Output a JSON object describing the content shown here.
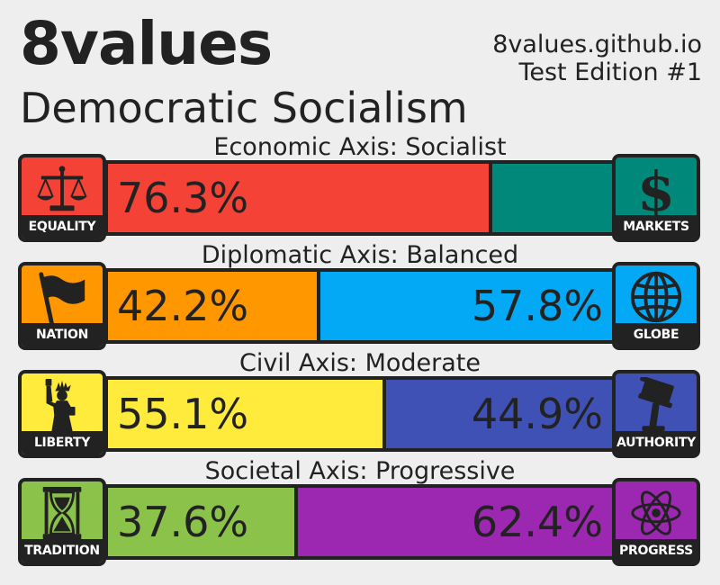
{
  "header": {
    "brand": "8values",
    "ideology": "Democratic Socialism",
    "site": "8values.github.io",
    "edition": "Test Edition #1"
  },
  "axes": [
    {
      "label": "Economic Axis: Socialist",
      "left": {
        "name": "EQUALITY",
        "icon": "scales-icon",
        "value": 76.3,
        "text": "76.3%",
        "color": "#f44336"
      },
      "right": {
        "name": "MARKETS",
        "icon": "dollar-icon",
        "value": 23.7,
        "text": "",
        "color": "#00897b"
      }
    },
    {
      "label": "Diplomatic Axis: Balanced",
      "left": {
        "name": "NATION",
        "icon": "flag-icon",
        "value": 42.2,
        "text": "42.2%",
        "color": "#ff9800"
      },
      "right": {
        "name": "GLOBE",
        "icon": "globe-icon",
        "value": 57.8,
        "text": "57.8%",
        "color": "#03a9f4"
      }
    },
    {
      "label": "Civil Axis: Moderate",
      "left": {
        "name": "LIBERTY",
        "icon": "statue-of-liberty-icon",
        "value": 55.1,
        "text": "55.1%",
        "color": "#ffeb3b"
      },
      "right": {
        "name": "AUTHORITY",
        "icon": "gavel-icon",
        "value": 44.9,
        "text": "44.9%",
        "color": "#3f51b5"
      }
    },
    {
      "label": "Societal Axis: Progressive",
      "left": {
        "name": "TRADITION",
        "icon": "hourglass-icon",
        "value": 37.6,
        "text": "37.6%",
        "color": "#8bc34a"
      },
      "right": {
        "name": "PROGRESS",
        "icon": "atom-icon",
        "value": 62.4,
        "text": "62.4%",
        "color": "#9c27b0"
      }
    }
  ]
}
